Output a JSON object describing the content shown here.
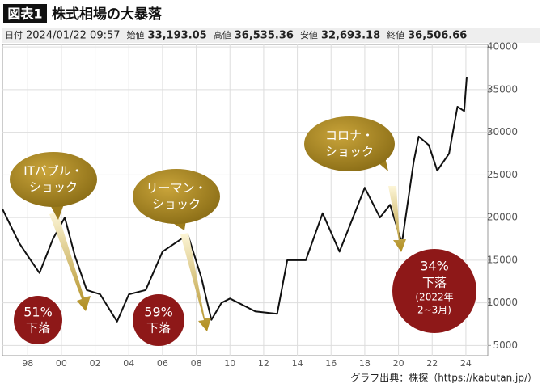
{
  "chart_data": {
    "type": "line",
    "badge": "図表1",
    "title": "株式相場の大暴落",
    "quote": [
      {
        "label": "日付",
        "value": "2024/01/22 09:57"
      },
      {
        "label": "始値",
        "value": "33,193.05"
      },
      {
        "label": "高値",
        "value": "36,535.36"
      },
      {
        "label": "安値",
        "value": "32,693.18"
      },
      {
        "label": "終値",
        "value": "36,506.66"
      }
    ],
    "x": [
      1996.5,
      1997,
      1997.5,
      1998,
      1998.7,
      1999.5,
      2000.2,
      2000.8,
      2001.5,
      2002.3,
      2003.3,
      2004,
      2005,
      2006,
      2007.5,
      2008.3,
      2008.9,
      2009.5,
      2010,
      2011.5,
      2012.8,
      2013.4,
      2014.5,
      2015.5,
      2016.5,
      2018,
      2018.9,
      2019.5,
      2020.2,
      2020.9,
      2021.2,
      2021.8,
      2022.3,
      2023,
      2023.5,
      2023.9,
      2024.05
    ],
    "values": [
      21000,
      19000,
      17000,
      15500,
      13500,
      17500,
      20000,
      15500,
      11500,
      11000,
      7800,
      11000,
      11500,
      16000,
      18000,
      13000,
      8000,
      10000,
      10500,
      9000,
      8700,
      15000,
      15000,
      20500,
      16000,
      23500,
      20000,
      21500,
      17000,
      26500,
      29500,
      28500,
      25500,
      27500,
      33000,
      32500,
      36500
    ],
    "color": "#111111",
    "xlim": [
      1996.5,
      2025.3
    ],
    "xticks": [
      {
        "value": 1998,
        "label": "98"
      },
      {
        "value": 2000,
        "label": "00"
      },
      {
        "value": 2002,
        "label": "02"
      },
      {
        "value": 2004,
        "label": "04"
      },
      {
        "value": 2006,
        "label": "06"
      },
      {
        "value": 2008,
        "label": "08"
      },
      {
        "value": 2010,
        "label": "10"
      },
      {
        "value": 2012,
        "label": "12"
      },
      {
        "value": 2014,
        "label": "14"
      },
      {
        "value": 2016,
        "label": "16"
      },
      {
        "value": 2018,
        "label": "18"
      },
      {
        "value": 2020,
        "label": "20"
      },
      {
        "value": 2022,
        "label": "22"
      },
      {
        "value": 2024,
        "label": "24"
      }
    ],
    "ylim": [
      3800,
      40300
    ],
    "yticks": [
      5000,
      10000,
      15000,
      20000,
      25000,
      30000,
      35000,
      40000
    ],
    "grid": true,
    "bubbles": [
      {
        "lines": [
          "ITバブル・",
          "ショック"
        ]
      },
      {
        "lines": [
          "リーマン・",
          "ショック"
        ]
      },
      {
        "lines": [
          "コロナ・",
          "ショック"
        ]
      }
    ],
    "drops": [
      {
        "lines": [
          "51%",
          "下落"
        ]
      },
      {
        "lines": [
          "59%",
          "下落"
        ]
      },
      {
        "lines": [
          "34%",
          "下落",
          "(2022年",
          "2~3月)"
        ]
      }
    ],
    "source": "グラフ出典：株探（https://kabutan.jp/）"
  }
}
